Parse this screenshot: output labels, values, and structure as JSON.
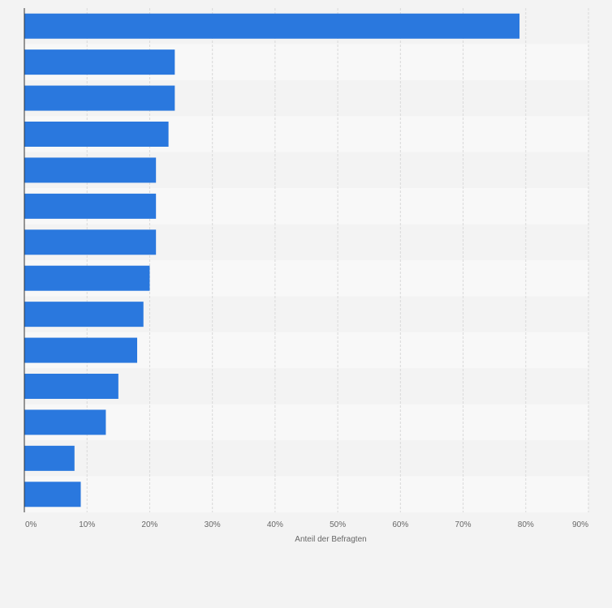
{
  "chart_data": {
    "type": "bar",
    "orientation": "horizontal",
    "categories": [
      "",
      "",
      "",
      "",
      "",
      "",
      "",
      "",
      "",
      "",
      "",
      "",
      "",
      ""
    ],
    "values": [
      79,
      24,
      24,
      23,
      21,
      21,
      21,
      20,
      19,
      18,
      15,
      13,
      8,
      9
    ],
    "xlabel": "Anteil der Befragten",
    "ylabel": "",
    "xlim": [
      0,
      90
    ],
    "x_ticks": [
      "0%",
      "10%",
      "20%",
      "30%",
      "40%",
      "50%",
      "60%",
      "70%",
      "80%",
      "90%"
    ],
    "grid": true,
    "bar_color": "#2a78de",
    "band_colors": [
      "#f3f3f3",
      "#f8f8f8"
    ]
  }
}
